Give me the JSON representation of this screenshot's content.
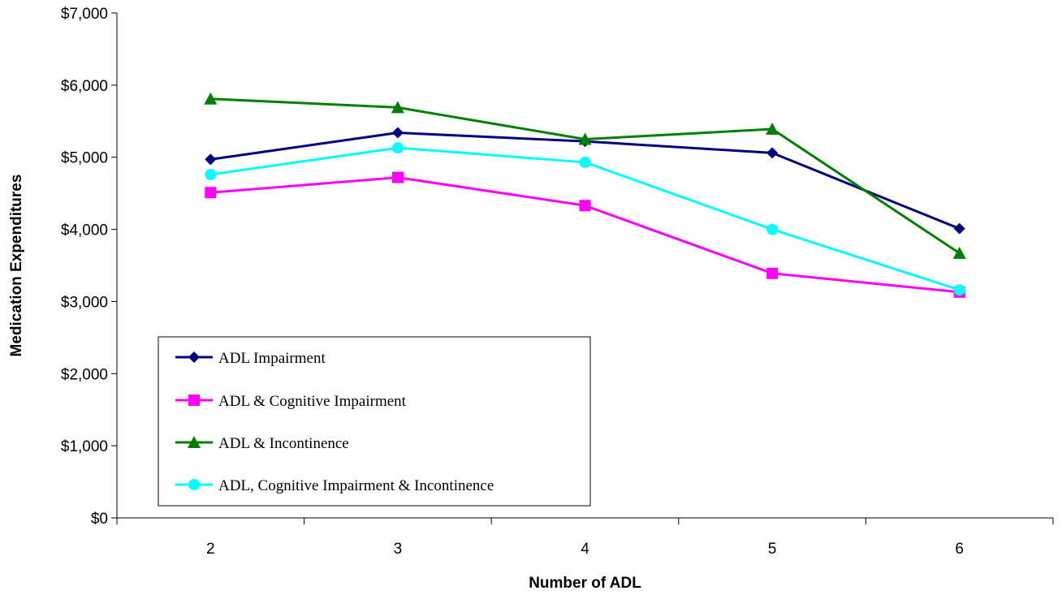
{
  "chart_data": {
    "type": "line",
    "title": "",
    "xlabel": "Number of ADL",
    "ylabel": "Medication Expenditures",
    "categories": [
      "2",
      "3",
      "4",
      "5",
      "6"
    ],
    "ylim": [
      0,
      7000
    ],
    "yticks": [
      0,
      1000,
      2000,
      3000,
      4000,
      5000,
      6000,
      7000
    ],
    "ytick_labels": [
      "$0",
      "$1,000",
      "$2,000",
      "$3,000",
      "$4,000",
      "$5,000",
      "$6,000",
      "$7,000"
    ],
    "grid": false,
    "legend_position": "lower-left",
    "series": [
      {
        "name": "ADL Impairment",
        "values": [
          4970,
          5340,
          5220,
          5060,
          4010
        ],
        "color": "#000080",
        "marker": "diamond"
      },
      {
        "name": "ADL & Cognitive Impairment",
        "values": [
          4510,
          4720,
          4330,
          3390,
          3130
        ],
        "color": "#ff00ff",
        "marker": "square"
      },
      {
        "name": "ADL & Incontinence",
        "values": [
          5810,
          5690,
          5250,
          5390,
          3670
        ],
        "color": "#008000",
        "marker": "triangle"
      },
      {
        "name": "ADL, Cognitive Impairment & Incontinence",
        "values": [
          4760,
          5130,
          4930,
          4000,
          3160
        ],
        "color": "#00ffff",
        "marker": "circle"
      }
    ]
  }
}
